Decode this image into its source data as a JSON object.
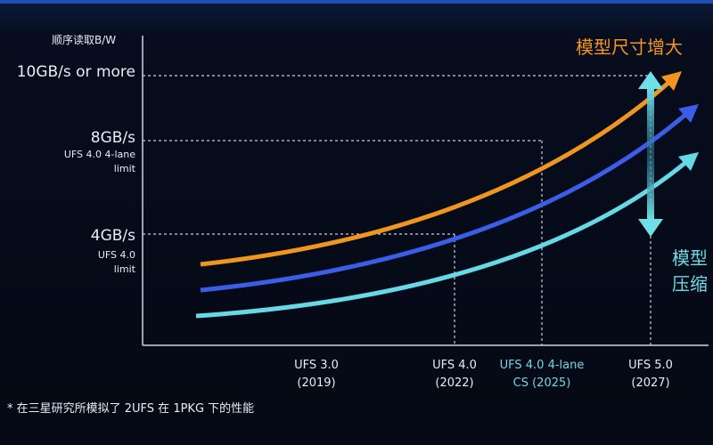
{
  "y_axis": {
    "title": "顺序读取B/W",
    "ticks": [
      {
        "label": "10GB/s or more",
        "note": []
      },
      {
        "label": "8GB/s",
        "note": [
          "UFS 4.0 4-lane",
          "limit"
        ]
      },
      {
        "label": "4GB/s",
        "note": [
          "UFS 4.0",
          "limit"
        ]
      }
    ]
  },
  "x_axis": {
    "labels": [
      {
        "name": "UFS 3.0",
        "year": "(2019)"
      },
      {
        "name": "UFS 4.0",
        "year": "(2022)"
      },
      {
        "name": "UFS 4.0 4-lane",
        "year": "CS (2025)"
      },
      {
        "name": "UFS 5.0",
        "year": "(2027)"
      }
    ]
  },
  "annotations": {
    "increase": "模型尺寸增大",
    "compress": [
      "模型",
      "压缩"
    ]
  },
  "footnote": "* 在三星研究所模拟了 2UFS 在 1PKG 下的性能"
}
